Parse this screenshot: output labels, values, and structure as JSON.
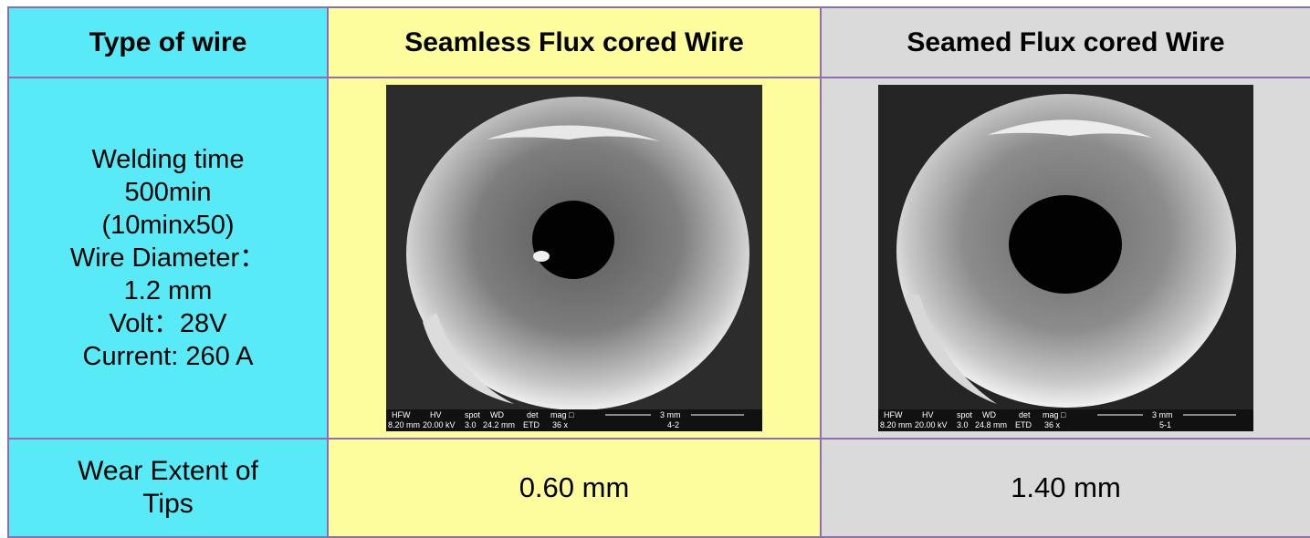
{
  "header": {
    "col1": "Type of wire",
    "col2": "Seamless Flux cored Wire",
    "col3": "Seamed Flux cored Wire"
  },
  "conditions": {
    "lines": [
      "Welding time",
      "500min",
      "(10minx50)",
      "Wire Diameter：",
      "1.2 mm",
      "Volt：28V",
      "Current: 260 A"
    ]
  },
  "images": {
    "seamless": {
      "databar": [
        "HFW",
        "HV",
        "spot",
        "WD",
        "det",
        "mag □",
        "3 mm"
      ],
      "databar_values": [
        "8.20 mm",
        "20.00 kV",
        "3.0",
        "24.2 mm",
        "ETD",
        "36 x",
        "4-2"
      ]
    },
    "seamed": {
      "databar": [
        "HFW",
        "HV",
        "spot",
        "WD",
        "det",
        "mag □",
        "3 mm"
      ],
      "databar_values": [
        "8.20 mm",
        "20.00 kV",
        "3.0",
        "24.8 mm",
        "ETD",
        "36 x",
        "5-1"
      ]
    }
  },
  "wear": {
    "label_lines": [
      "Wear Extent of",
      "Tips"
    ],
    "seamless": "0.60 mm",
    "seamed": "1.40 mm"
  }
}
